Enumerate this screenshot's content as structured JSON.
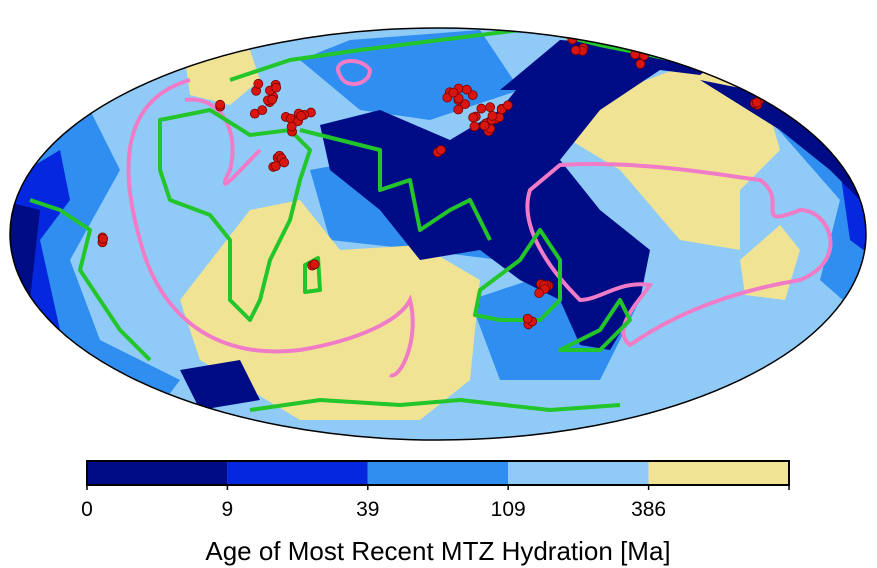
{
  "colorbar": {
    "ticks": [
      0,
      9,
      39,
      109,
      386
    ],
    "colors": [
      "#000c86",
      "#0527dd",
      "#2f8ef0",
      "#8fcbf6",
      "#f1e394"
    ],
    "label": "Age of Most Recent MTZ Hydration  [Ma]"
  }
}
